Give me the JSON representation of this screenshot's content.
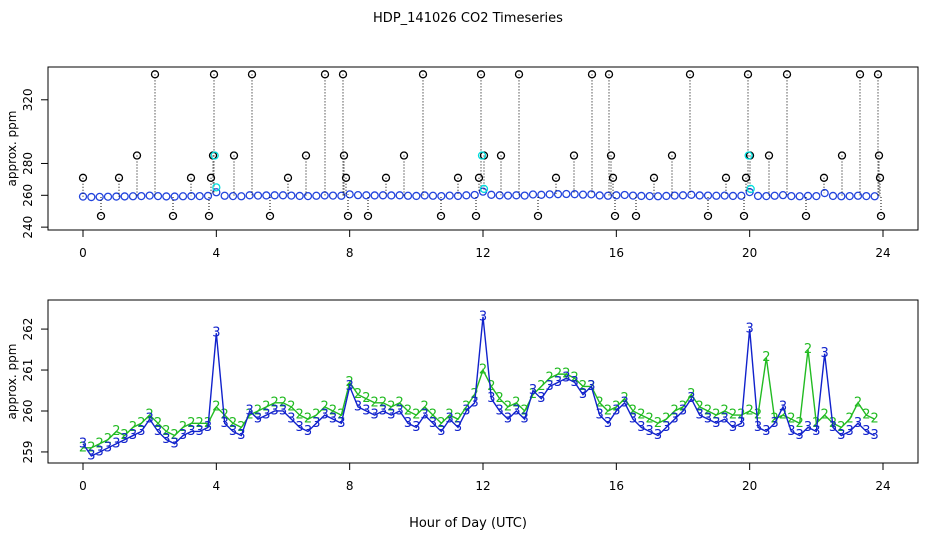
{
  "title": "HDP_141026  CO2 Timeseries",
  "xlabel": "Hour of Day (UTC)",
  "chart_data": [
    {
      "type": "scatter",
      "ylabel": "approx. ppm",
      "xlim": [
        -1.05,
        25.05
      ],
      "xticks": [
        0,
        4,
        8,
        12,
        16,
        20,
        24
      ],
      "ylim": [
        238.2,
        340.6
      ],
      "yticks": [
        240,
        260,
        280,
        320
      ],
      "x": [
        0,
        0.25,
        0.5,
        0.75,
        1,
        1.25,
        1.5,
        1.75,
        2,
        2.25,
        2.5,
        2.75,
        3,
        3.25,
        3.5,
        3.75,
        4,
        4.25,
        4.5,
        4.75,
        5,
        5.25,
        5.5,
        5.75,
        6,
        6.25,
        6.5,
        6.75,
        7,
        7.25,
        7.5,
        7.75,
        8,
        8.25,
        8.5,
        8.75,
        9,
        9.25,
        9.5,
        9.75,
        10,
        10.25,
        10.5,
        10.75,
        11,
        11.25,
        11.5,
        11.75,
        12,
        12.25,
        12.5,
        12.75,
        13,
        13.25,
        13.5,
        13.75,
        14,
        14.25,
        14.5,
        14.75,
        15,
        15.25,
        15.5,
        15.75,
        16,
        16.25,
        16.5,
        16.75,
        17,
        17.25,
        17.5,
        17.75,
        18,
        18.25,
        18.5,
        18.75,
        19,
        19.25,
        19.5,
        19.75,
        20,
        20.25,
        20.5,
        20.75,
        21,
        21.25,
        21.5,
        21.75,
        22,
        22.25,
        22.5,
        22.75,
        23,
        23.25,
        23.5,
        23.75
      ],
      "series": [
        {
          "color": "#2244dd",
          "values": [
            259.2,
            258.9,
            259.0,
            259.1,
            259.2,
            259.3,
            259.4,
            259.5,
            259.8,
            259.5,
            259.3,
            259.2,
            259.4,
            259.5,
            259.5,
            259.6,
            261.9,
            259.7,
            259.5,
            259.4,
            260.0,
            259.8,
            259.9,
            260.0,
            260.0,
            259.8,
            259.6,
            259.5,
            259.7,
            259.9,
            259.8,
            259.7,
            260.6,
            260.1,
            260.0,
            259.9,
            260.0,
            259.9,
            260.0,
            259.7,
            259.6,
            259.9,
            259.7,
            259.5,
            259.8,
            259.6,
            260.0,
            260.2,
            262.3,
            260.3,
            260.0,
            259.8,
            260.0,
            259.8,
            260.5,
            260.3,
            260.6,
            260.7,
            260.8,
            260.7,
            260.4,
            260.6,
            259.9,
            259.7,
            260.0,
            260.2,
            259.8,
            259.6,
            259.5,
            259.4,
            259.6,
            259.8,
            260.0,
            260.3,
            259.9,
            259.8,
            259.7,
            259.8,
            259.6,
            259.7,
            262.0,
            259.6,
            259.5,
            259.7,
            260.1,
            259.5,
            259.4,
            259.6,
            259.5,
            261.4,
            259.6,
            259.4,
            259.5,
            259.7,
            259.5,
            259.4
          ]
        },
        {
          "color": "#000000",
          "drop_lines": true,
          "x": [
            0,
            0.54,
            1.08,
            1.62,
            2.16,
            2.7,
            3.24,
            3.78,
            3.84,
            3.9,
            3.93,
            4.53,
            5.07,
            5.61,
            6.15,
            6.69,
            7.26,
            7.8,
            7.83,
            7.89,
            7.95,
            8.55,
            9.09,
            9.63,
            10.2,
            10.74,
            11.25,
            11.79,
            11.88,
            11.94,
            12.03,
            12.54,
            13.08,
            13.65,
            14.19,
            14.73,
            15.27,
            15.78,
            15.84,
            15.9,
            15.96,
            16.59,
            17.13,
            17.67,
            18.21,
            18.75,
            19.29,
            19.83,
            19.89,
            19.95,
            20.01,
            20.58,
            21.12,
            21.69,
            22.23,
            22.77,
            23.31,
            23.85,
            23.88,
            23.91,
            23.94
          ],
          "values": [
            271,
            247,
            271,
            285,
            336,
            247,
            271,
            247,
            271,
            285,
            336,
            285,
            336,
            247,
            271,
            285,
            336,
            336,
            285,
            271,
            247,
            247,
            271,
            285,
            336,
            247,
            271,
            247,
            271,
            336,
            285,
            285,
            336,
            247,
            271,
            285,
            336,
            336,
            285,
            271,
            247,
            247,
            271,
            285,
            336,
            247,
            271,
            247,
            271,
            336,
            285,
            285,
            336,
            247,
            271,
            285,
            336,
            336,
            285,
            271,
            247
          ]
        },
        {
          "color": "#00dddd",
          "x": [
            3.95,
            4.0,
            11.97,
            12.03,
            19.97,
            20.03
          ],
          "values": [
            285,
            265,
            285,
            264,
            285,
            264
          ]
        }
      ]
    },
    {
      "type": "line",
      "ylabel": "approx. ppm",
      "xlim": [
        -1.05,
        25.05
      ],
      "xticks": [
        0,
        4,
        8,
        12,
        16,
        20,
        24
      ],
      "ylim": [
        258.73,
        262.71
      ],
      "yticks": [
        259,
        260,
        261,
        262
      ],
      "x": [
        0,
        0.25,
        0.5,
        0.75,
        1,
        1.25,
        1.5,
        1.75,
        2,
        2.25,
        2.5,
        2.75,
        3,
        3.25,
        3.5,
        3.75,
        4,
        4.25,
        4.5,
        4.75,
        5,
        5.25,
        5.5,
        5.75,
        6,
        6.25,
        6.5,
        6.75,
        7,
        7.25,
        7.5,
        7.75,
        8,
        8.25,
        8.5,
        8.75,
        9,
        9.25,
        9.5,
        9.75,
        10,
        10.25,
        10.5,
        10.75,
        11,
        11.25,
        11.5,
        11.75,
        12,
        12.25,
        12.5,
        12.75,
        13,
        13.25,
        13.5,
        13.75,
        14,
        14.25,
        14.5,
        14.75,
        15,
        15.25,
        15.5,
        15.75,
        16,
        16.25,
        16.5,
        16.75,
        17,
        17.25,
        17.5,
        17.75,
        18,
        18.25,
        18.5,
        18.75,
        19,
        19.25,
        19.5,
        19.75,
        20,
        20.25,
        20.5,
        20.75,
        21,
        21.25,
        21.5,
        21.75,
        22,
        22.25,
        22.5,
        22.75,
        23,
        23.25,
        23.5,
        23.75
      ],
      "series": [
        {
          "label": "2",
          "color": "#22bb22",
          "values": [
            259.1,
            259.1,
            259.2,
            259.3,
            259.5,
            259.4,
            259.6,
            259.7,
            259.9,
            259.7,
            259.5,
            259.4,
            259.6,
            259.7,
            259.7,
            259.7,
            260.1,
            259.9,
            259.7,
            259.6,
            259.9,
            260.0,
            260.1,
            260.2,
            260.2,
            260.1,
            259.9,
            259.8,
            259.9,
            260.1,
            260.0,
            259.9,
            260.7,
            260.4,
            260.3,
            260.2,
            260.2,
            260.1,
            260.2,
            260.0,
            259.9,
            260.1,
            259.9,
            259.7,
            259.9,
            259.8,
            260.1,
            260.4,
            261.0,
            260.6,
            260.3,
            260.1,
            260.2,
            260.0,
            260.4,
            260.6,
            260.8,
            260.9,
            260.9,
            260.8,
            260.6,
            260.6,
            260.2,
            260.0,
            260.1,
            260.3,
            260.0,
            259.9,
            259.8,
            259.7,
            259.8,
            260.0,
            260.1,
            260.4,
            260.1,
            260.0,
            259.9,
            260.0,
            259.9,
            259.9,
            260.0,
            259.9,
            261.3,
            259.8,
            259.9,
            259.8,
            259.7,
            261.5,
            259.7,
            259.9,
            259.7,
            259.6,
            259.8,
            260.2,
            259.9,
            259.8
          ]
        },
        {
          "label": "3",
          "color": "#1122cc",
          "values": [
            259.2,
            258.9,
            259.0,
            259.1,
            259.2,
            259.3,
            259.4,
            259.5,
            259.8,
            259.5,
            259.3,
            259.2,
            259.4,
            259.5,
            259.5,
            259.6,
            261.9,
            259.7,
            259.5,
            259.4,
            260.0,
            259.8,
            259.9,
            260.0,
            260.0,
            259.8,
            259.6,
            259.5,
            259.7,
            259.9,
            259.8,
            259.7,
            260.6,
            260.1,
            260.0,
            259.9,
            260.0,
            259.9,
            260.0,
            259.7,
            259.6,
            259.9,
            259.7,
            259.5,
            259.8,
            259.6,
            260.0,
            260.2,
            262.3,
            260.3,
            260.0,
            259.8,
            260.0,
            259.8,
            260.5,
            260.3,
            260.6,
            260.7,
            260.8,
            260.7,
            260.4,
            260.6,
            259.9,
            259.7,
            260.0,
            260.2,
            259.8,
            259.6,
            259.5,
            259.4,
            259.6,
            259.8,
            260.0,
            260.3,
            259.9,
            259.8,
            259.7,
            259.8,
            259.6,
            259.7,
            262.0,
            259.6,
            259.5,
            259.7,
            260.1,
            259.5,
            259.4,
            259.6,
            259.5,
            261.4,
            259.6,
            259.4,
            259.5,
            259.7,
            259.5,
            259.4
          ]
        }
      ]
    }
  ]
}
